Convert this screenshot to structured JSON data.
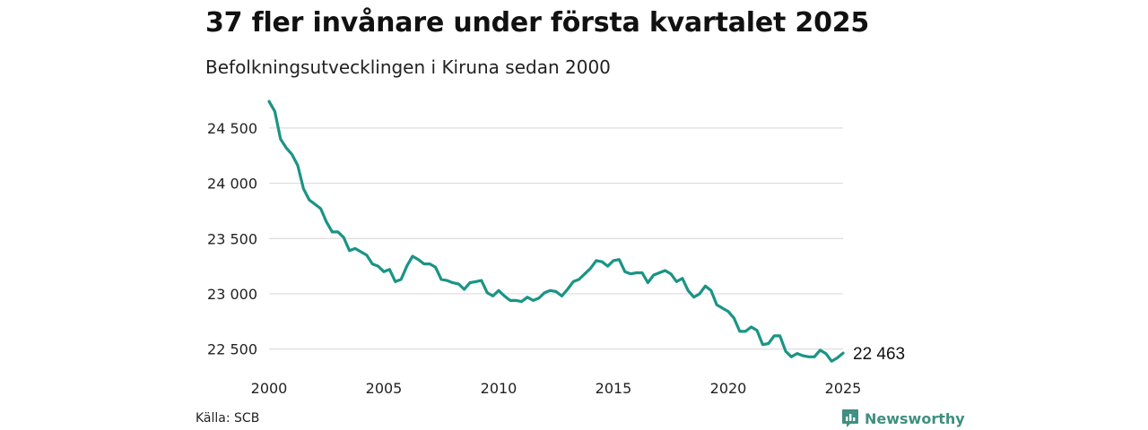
{
  "title": "37 fler invånare under första kvartalet 2025",
  "subtitle": "Befolkningsutvecklingen i Kiruna sedan 2000",
  "source": "Källa: SCB",
  "brand": "Newsworthy",
  "colors": {
    "line": "#1a9485",
    "grid": "#dddddd",
    "brand": "#3f8f82"
  },
  "chart_data": {
    "type": "line",
    "title": "37 fler invånare under första kvartalet 2025",
    "subtitle": "Befolkningsutvecklingen i Kiruna sedan 2000",
    "xlabel": "",
    "ylabel": "",
    "xlim": [
      2000,
      2025
    ],
    "ylim": [
      22400,
      24750
    ],
    "grid": true,
    "x_ticks": [
      2000,
      2005,
      2010,
      2015,
      2020,
      2025
    ],
    "x_tick_labels": [
      "2000",
      "2005",
      "2010",
      "2015",
      "2020",
      "2025"
    ],
    "y_ticks": [
      22500,
      23000,
      23500,
      24000,
      24500
    ],
    "y_tick_labels": [
      "22 500",
      "23 000",
      "23 500",
      "24 000",
      "24 500"
    ],
    "end_label": "22 463",
    "series": [
      {
        "x": [
          2000.0,
          2000.25,
          2000.5,
          2000.75,
          2001.0,
          2001.25,
          2001.5,
          2001.75,
          2002.0,
          2002.25,
          2002.5,
          2002.75,
          2003.0,
          2003.25,
          2003.5,
          2003.75,
          2004.0,
          2004.25,
          2004.5,
          2004.75,
          2005.0,
          2005.25,
          2005.5,
          2005.75,
          2006.0,
          2006.25,
          2006.5,
          2006.75,
          2007.0,
          2007.25,
          2007.5,
          2007.75,
          2008.0,
          2008.25,
          2008.5,
          2008.75,
          2009.0,
          2009.25,
          2009.5,
          2009.75,
          2010.0,
          2010.25,
          2010.5,
          2010.75,
          2011.0,
          2011.25,
          2011.5,
          2011.75,
          2012.0,
          2012.25,
          2012.5,
          2012.75,
          2013.0,
          2013.25,
          2013.5,
          2013.75,
          2014.0,
          2014.25,
          2014.5,
          2014.75,
          2015.0,
          2015.25,
          2015.5,
          2015.75,
          2016.0,
          2016.25,
          2016.5,
          2016.75,
          2017.0,
          2017.25,
          2017.5,
          2017.75,
          2018.0,
          2018.25,
          2018.5,
          2018.75,
          2019.0,
          2019.25,
          2019.5,
          2019.75,
          2020.0,
          2020.25,
          2020.5,
          2020.75,
          2021.0,
          2021.25,
          2021.5,
          2021.75,
          2022.0,
          2022.25,
          2022.5,
          2022.75,
          2023.0,
          2023.25,
          2023.5,
          2023.75,
          2024.0,
          2024.25,
          2024.5,
          2024.75,
          2025.0
        ],
        "values": [
          24740,
          24650,
          24400,
          24320,
          24260,
          24160,
          23950,
          23850,
          23810,
          23770,
          23650,
          23560,
          23560,
          23510,
          23390,
          23410,
          23380,
          23350,
          23270,
          23250,
          23200,
          23220,
          23110,
          23130,
          23250,
          23340,
          23310,
          23270,
          23270,
          23240,
          23130,
          23120,
          23100,
          23090,
          23040,
          23100,
          23110,
          23120,
          23010,
          22980,
          23030,
          22980,
          22940,
          22940,
          22930,
          22970,
          22940,
          22960,
          23010,
          23030,
          23020,
          22980,
          23040,
          23110,
          23130,
          23180,
          23230,
          23300,
          23290,
          23250,
          23300,
          23310,
          23200,
          23180,
          23190,
          23190,
          23100,
          23170,
          23190,
          23210,
          23180,
          23110,
          23140,
          23030,
          22970,
          23000,
          23070,
          23030,
          22900,
          22870,
          22840,
          22780,
          22660,
          22660,
          22700,
          22670,
          22540,
          22550,
          22620,
          22620,
          22480,
          22430,
          22460,
          22440,
          22430,
          22430,
          22490,
          22460,
          22390,
          22420,
          22463
        ]
      }
    ]
  }
}
